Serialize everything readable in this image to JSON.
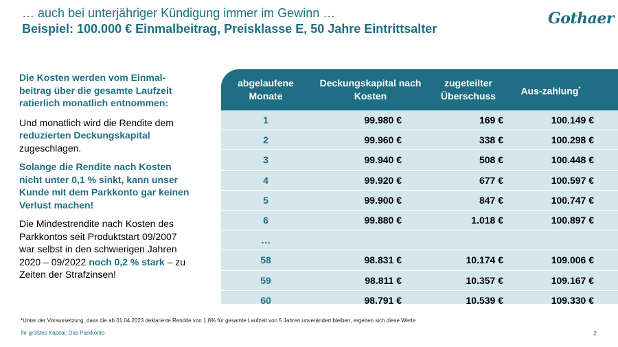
{
  "title": {
    "line1": "… auch bei unterjähriger Kündigung immer im Gewinn …",
    "line2": "Beispiel: 100.000 € Einmalbeitrag, Preisklasse E, 50 Jahre Eintrittsalter"
  },
  "logo": "Gothaer",
  "left": {
    "p1": "Die Kosten werden vom Einmal-beitrag über die gesamte Laufzeit ratierlich monatlich entnommen:",
    "p2_before": "Und monatlich wird die Rendite dem ",
    "p2_highlight": "reduzierten Deckungskapital",
    "p2_after": " zugeschlagen.",
    "p3": "Solange die Rendite nach Kosten nicht unter 0,1 % sinkt, kann unser Kunde mit dem Parkkonto gar keinen Verlust machen!",
    "p4_before": "Die Mindestrendite nach Kosten des Parkkontos seit Produktstart 09/2007 war selbst in den schwierigen Jahren 2020 – 09/2022 ",
    "p4_highlight": "noch 0,2 % stark",
    "p4_after": " – zu Zeiten der Strafzinsen!"
  },
  "table": {
    "headers": {
      "months": "abgelaufene Monate",
      "capital": "Deckungskapital nach Kosten",
      "surplus": "zugeteilter Überschuss",
      "payout": "Aus-zahlung",
      "payout_mark": "*"
    },
    "rows": [
      {
        "m": "1",
        "cap": "99.980 €",
        "sur": "169 €",
        "pay": "100.149 €"
      },
      {
        "m": "2",
        "cap": "99.960 €",
        "sur": "338 €",
        "pay": "100.298 €"
      },
      {
        "m": "3",
        "cap": "99.940 €",
        "sur": "508 €",
        "pay": "100.448 €"
      },
      {
        "m": "4",
        "cap": "99.920 €",
        "sur": "677 €",
        "pay": "100.597 €"
      },
      {
        "m": "5",
        "cap": "99.900 €",
        "sur": "847 €",
        "pay": "100.747 €"
      },
      {
        "m": "6",
        "cap": "99.880 €",
        "sur": "1.018 €",
        "pay": "100.897 €"
      },
      {
        "m": "…",
        "cap": "",
        "sur": "",
        "pay": ""
      },
      {
        "m": "58",
        "cap": "98.831 €",
        "sur": "10.174 €",
        "pay": "109.006 €"
      },
      {
        "m": "59",
        "cap": "98.811 €",
        "sur": "10.357 €",
        "pay": "109.167 €"
      },
      {
        "m": "60",
        "cap": "98.791 €",
        "sur": "10.539 €",
        "pay": "109.330 €"
      }
    ]
  },
  "footnote": "*Unter der Voraussetzung, dass die ab 01.04.2023 deklarierte Rendite von 1,8% für gesamte Laufzeit von 5 Jahren unverändert bleiben, ergeben sich diese Werte",
  "footer": "Ihr größtes Kapital: Das Parkkonto",
  "page_number": "2",
  "colors": {
    "brand": "#1f6e83",
    "table_bg": "#d5e6ec"
  }
}
